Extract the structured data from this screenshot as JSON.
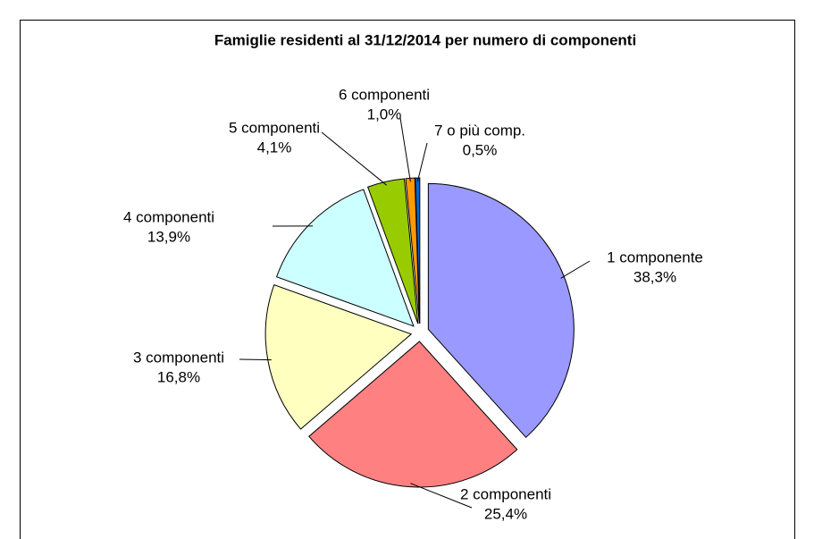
{
  "chart_data": {
    "type": "pie",
    "title": "Famiglie residenti al 31/12/2014 per numero di componenti",
    "categories": [
      "1 componente",
      "2 componenti",
      "3 componenti",
      "4 componenti",
      "5 componenti",
      "6 componenti",
      "7 o più comp."
    ],
    "values": [
      38.3,
      25.4,
      16.8,
      13.9,
      4.1,
      1.0,
      0.5
    ],
    "value_labels": [
      "38,3%",
      "25,4%",
      "16,8%",
      "13,9%",
      "4,1%",
      "1,0%",
      "0,5%"
    ],
    "colors": [
      "#9999ff",
      "#ff8080",
      "#ffffc0",
      "#ccffff",
      "#99cc00",
      "#ff9900",
      "#0066cc"
    ]
  }
}
